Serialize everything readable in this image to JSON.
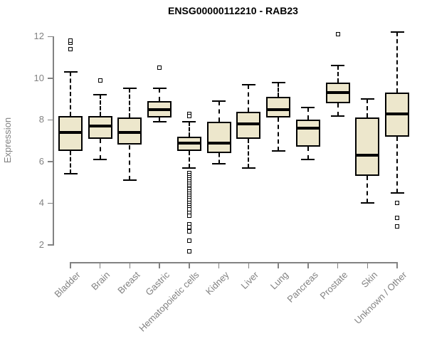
{
  "colors": {
    "box_fill": "#EDE7CC",
    "box_border": "#000000",
    "median": "#000000",
    "whisker": "#000000",
    "outlier": "#000000",
    "axis": "#828282",
    "tick_text": "#828282",
    "title_text": "#000000",
    "background": "#FFFFFF"
  },
  "chart_data": {
    "type": "boxplot",
    "title": "ENSG00000112210 - RAB23",
    "xlabel": "",
    "ylabel": "Expression",
    "ylim": [
      1.6,
      12.4
    ],
    "yticks": [
      2,
      4,
      6,
      8,
      10,
      12
    ],
    "grid": false,
    "legend": "none",
    "categories": [
      "Bladder",
      "Brain",
      "Breast",
      "Gastric",
      "Hematopoietic cells",
      "Kidney",
      "Liver",
      "Lung",
      "Pancreas",
      "Prostate",
      "Skin",
      "Unknown / Other"
    ],
    "series": [
      {
        "name": "Bladder",
        "low": 5.4,
        "q1": 6.5,
        "median": 7.4,
        "q3": 8.2,
        "high": 10.3,
        "outliers": [
          11.4,
          11.7,
          11.8
        ]
      },
      {
        "name": "Brain",
        "low": 6.1,
        "q1": 7.1,
        "median": 7.7,
        "q3": 8.2,
        "high": 9.2,
        "outliers": [
          9.9
        ]
      },
      {
        "name": "Breast",
        "low": 5.1,
        "q1": 6.8,
        "median": 7.4,
        "q3": 8.1,
        "high": 9.5,
        "outliers": []
      },
      {
        "name": "Gastric",
        "low": 7.9,
        "q1": 8.1,
        "median": 8.5,
        "q3": 8.9,
        "high": 9.5,
        "outliers": [
          10.5
        ]
      },
      {
        "name": "Hematopoietic cells",
        "low": 5.7,
        "q1": 6.5,
        "median": 6.9,
        "q3": 7.2,
        "high": 7.9,
        "outliers": [
          8.3,
          8.2,
          5.45,
          5.35,
          5.25,
          5.15,
          5.05,
          4.95,
          4.85,
          4.75,
          4.65,
          4.55,
          4.45,
          4.35,
          4.25,
          4.15,
          4.0,
          3.9,
          3.8,
          3.7,
          3.55,
          3.4,
          3.0,
          2.85,
          2.65,
          2.2,
          1.7
        ]
      },
      {
        "name": "Kidney",
        "low": 5.9,
        "q1": 6.4,
        "median": 6.9,
        "q3": 7.9,
        "high": 8.9,
        "outliers": []
      },
      {
        "name": "Liver",
        "low": 5.7,
        "q1": 7.1,
        "median": 7.8,
        "q3": 8.4,
        "high": 9.7,
        "outliers": []
      },
      {
        "name": "Lung",
        "low": 6.5,
        "q1": 8.1,
        "median": 8.5,
        "q3": 9.1,
        "high": 9.8,
        "outliers": []
      },
      {
        "name": "Pancreas",
        "low": 6.1,
        "q1": 6.7,
        "median": 7.6,
        "q3": 8.0,
        "high": 8.6,
        "outliers": []
      },
      {
        "name": "Prostate",
        "low": 8.2,
        "q1": 8.8,
        "median": 9.3,
        "q3": 9.8,
        "high": 10.6,
        "outliers": [
          12.1
        ]
      },
      {
        "name": "Skin",
        "low": 4.0,
        "q1": 5.3,
        "median": 6.3,
        "q3": 8.1,
        "high": 9.0,
        "outliers": []
      },
      {
        "name": "Unknown / Other",
        "low": 4.5,
        "q1": 7.2,
        "median": 8.3,
        "q3": 9.3,
        "high": 12.2,
        "outliers": [
          4.0,
          3.3,
          2.9
        ]
      }
    ]
  }
}
